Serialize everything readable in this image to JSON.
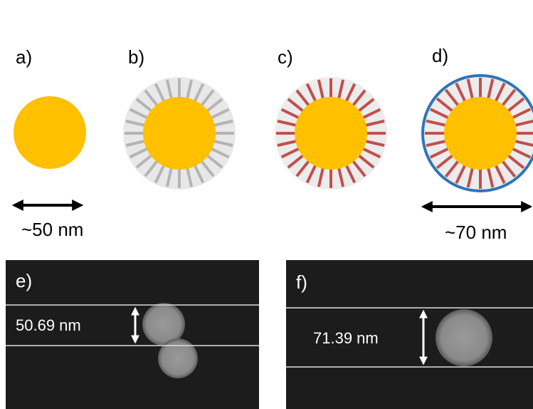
{
  "panels": {
    "a": "a)",
    "b": "b)",
    "c": "c)",
    "d": "d)",
    "e": "e)",
    "f": "f)"
  },
  "scale_a": "~50 nm",
  "scale_d": "~70 nm",
  "measure_e": "50.69 nm",
  "measure_f": "71.39 nm"
}
